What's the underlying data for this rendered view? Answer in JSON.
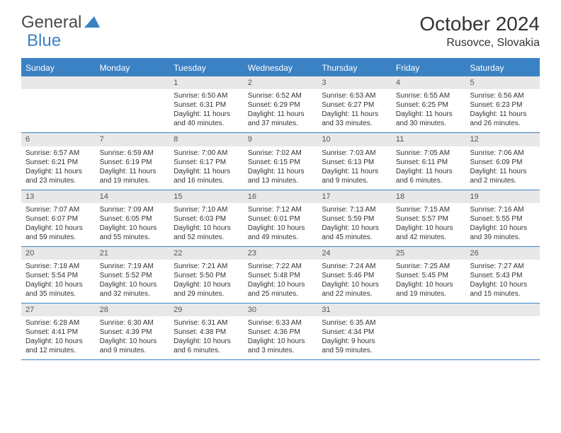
{
  "logo": {
    "part1": "General",
    "part2": "Blue"
  },
  "title": "October 2024",
  "location": "Rusovce, Slovakia",
  "colors": {
    "accent": "#3b82c4",
    "header_bg": "#e8e8e8",
    "text": "#333333",
    "logo_gray": "#4a4a4a"
  },
  "weekdays": [
    "Sunday",
    "Monday",
    "Tuesday",
    "Wednesday",
    "Thursday",
    "Friday",
    "Saturday"
  ],
  "weeks": [
    [
      null,
      null,
      {
        "n": "1",
        "sunrise": "6:50 AM",
        "sunset": "6:31 PM",
        "day": "11 hours and 40 minutes."
      },
      {
        "n": "2",
        "sunrise": "6:52 AM",
        "sunset": "6:29 PM",
        "day": "11 hours and 37 minutes."
      },
      {
        "n": "3",
        "sunrise": "6:53 AM",
        "sunset": "6:27 PM",
        "day": "11 hours and 33 minutes."
      },
      {
        "n": "4",
        "sunrise": "6:55 AM",
        "sunset": "6:25 PM",
        "day": "11 hours and 30 minutes."
      },
      {
        "n": "5",
        "sunrise": "6:56 AM",
        "sunset": "6:23 PM",
        "day": "11 hours and 26 minutes."
      }
    ],
    [
      {
        "n": "6",
        "sunrise": "6:57 AM",
        "sunset": "6:21 PM",
        "day": "11 hours and 23 minutes."
      },
      {
        "n": "7",
        "sunrise": "6:59 AM",
        "sunset": "6:19 PM",
        "day": "11 hours and 19 minutes."
      },
      {
        "n": "8",
        "sunrise": "7:00 AM",
        "sunset": "6:17 PM",
        "day": "11 hours and 16 minutes."
      },
      {
        "n": "9",
        "sunrise": "7:02 AM",
        "sunset": "6:15 PM",
        "day": "11 hours and 13 minutes."
      },
      {
        "n": "10",
        "sunrise": "7:03 AM",
        "sunset": "6:13 PM",
        "day": "11 hours and 9 minutes."
      },
      {
        "n": "11",
        "sunrise": "7:05 AM",
        "sunset": "6:11 PM",
        "day": "11 hours and 6 minutes."
      },
      {
        "n": "12",
        "sunrise": "7:06 AM",
        "sunset": "6:09 PM",
        "day": "11 hours and 2 minutes."
      }
    ],
    [
      {
        "n": "13",
        "sunrise": "7:07 AM",
        "sunset": "6:07 PM",
        "day": "10 hours and 59 minutes."
      },
      {
        "n": "14",
        "sunrise": "7:09 AM",
        "sunset": "6:05 PM",
        "day": "10 hours and 55 minutes."
      },
      {
        "n": "15",
        "sunrise": "7:10 AM",
        "sunset": "6:03 PM",
        "day": "10 hours and 52 minutes."
      },
      {
        "n": "16",
        "sunrise": "7:12 AM",
        "sunset": "6:01 PM",
        "day": "10 hours and 49 minutes."
      },
      {
        "n": "17",
        "sunrise": "7:13 AM",
        "sunset": "5:59 PM",
        "day": "10 hours and 45 minutes."
      },
      {
        "n": "18",
        "sunrise": "7:15 AM",
        "sunset": "5:57 PM",
        "day": "10 hours and 42 minutes."
      },
      {
        "n": "19",
        "sunrise": "7:16 AM",
        "sunset": "5:55 PM",
        "day": "10 hours and 39 minutes."
      }
    ],
    [
      {
        "n": "20",
        "sunrise": "7:18 AM",
        "sunset": "5:54 PM",
        "day": "10 hours and 35 minutes."
      },
      {
        "n": "21",
        "sunrise": "7:19 AM",
        "sunset": "5:52 PM",
        "day": "10 hours and 32 minutes."
      },
      {
        "n": "22",
        "sunrise": "7:21 AM",
        "sunset": "5:50 PM",
        "day": "10 hours and 29 minutes."
      },
      {
        "n": "23",
        "sunrise": "7:22 AM",
        "sunset": "5:48 PM",
        "day": "10 hours and 25 minutes."
      },
      {
        "n": "24",
        "sunrise": "7:24 AM",
        "sunset": "5:46 PM",
        "day": "10 hours and 22 minutes."
      },
      {
        "n": "25",
        "sunrise": "7:25 AM",
        "sunset": "5:45 PM",
        "day": "10 hours and 19 minutes."
      },
      {
        "n": "26",
        "sunrise": "7:27 AM",
        "sunset": "5:43 PM",
        "day": "10 hours and 15 minutes."
      }
    ],
    [
      {
        "n": "27",
        "sunrise": "6:28 AM",
        "sunset": "4:41 PM",
        "day": "10 hours and 12 minutes."
      },
      {
        "n": "28",
        "sunrise": "6:30 AM",
        "sunset": "4:39 PM",
        "day": "10 hours and 9 minutes."
      },
      {
        "n": "29",
        "sunrise": "6:31 AM",
        "sunset": "4:38 PM",
        "day": "10 hours and 6 minutes."
      },
      {
        "n": "30",
        "sunrise": "6:33 AM",
        "sunset": "4:36 PM",
        "day": "10 hours and 3 minutes."
      },
      {
        "n": "31",
        "sunrise": "6:35 AM",
        "sunset": "4:34 PM",
        "day": "9 hours and 59 minutes."
      },
      null,
      null
    ]
  ],
  "labels": {
    "sunrise": "Sunrise: ",
    "sunset": "Sunset: ",
    "daylight": "Daylight: "
  }
}
